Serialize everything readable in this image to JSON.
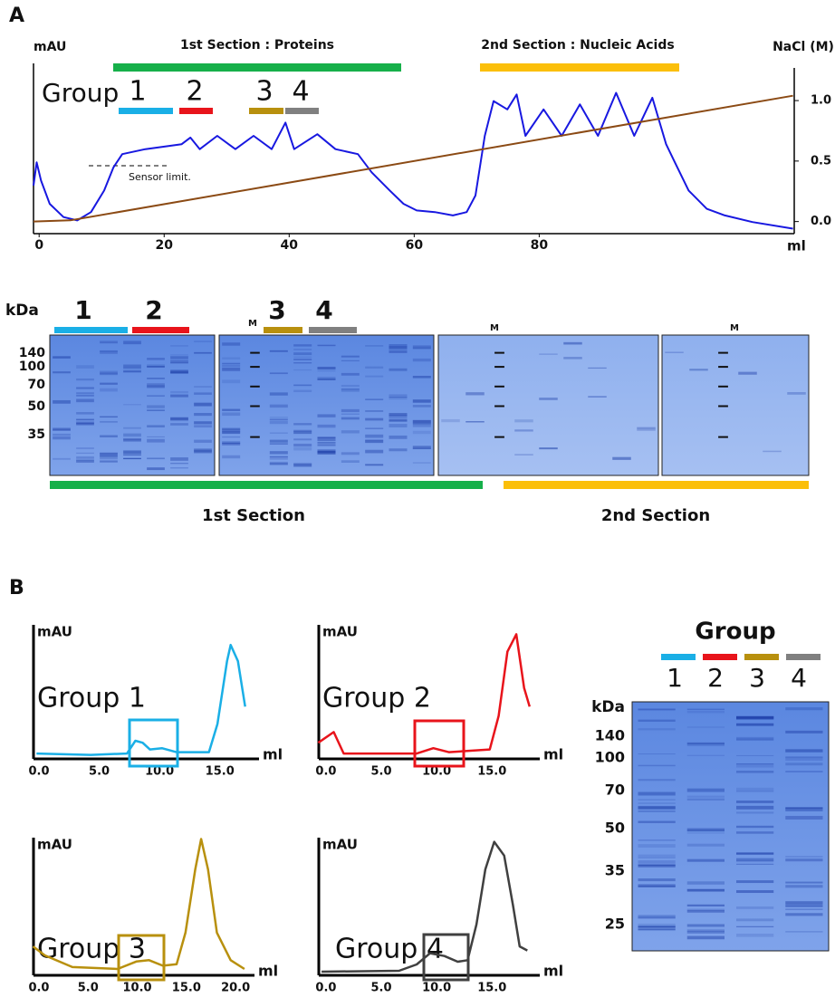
{
  "panel_a": {
    "label": "A",
    "group_label": "Group",
    "groups": [
      "1",
      "2",
      "3",
      "4"
    ],
    "sections": [
      "1st Section : Proteins",
      "2nd Section : Nucleic Acids"
    ],
    "sensor_note": "Sensor limit.",
    "gel": {
      "kda_unit": "kDa",
      "kda": [
        "140",
        "100",
        "70",
        "50",
        "35"
      ],
      "groups": [
        "1",
        "2",
        "3",
        "4"
      ],
      "marker": "M",
      "sections": [
        "1st Section",
        "2nd Section"
      ]
    }
  },
  "panel_b": {
    "label": "B",
    "gel": {
      "title": "Group",
      "lanes": [
        "1",
        "2",
        "3",
        "4"
      ],
      "kda_unit": "kDa",
      "kda": [
        "140",
        "100",
        "70",
        "50",
        "35",
        "25"
      ]
    }
  },
  "chart_data": [
    {
      "type": "line",
      "y_label": "mAU",
      "y2_label": "NaCl (M)",
      "x_label": "ml",
      "xlim": [
        -0.9,
        120.8
      ],
      "xticks": [
        0,
        20,
        40,
        60,
        80
      ],
      "ylim": [
        0,
        100
      ],
      "y2lim": [
        -0.1,
        1.27
      ],
      "y2ticks": [
        {
          "value": 0,
          "label": "0.0"
        },
        {
          "value": 0.5,
          "label": "0.5"
        },
        {
          "value": 1,
          "label": "1.0"
        }
      ],
      "series": [
        {
          "color": "#1818e0",
          "x": [
            -0.9,
            -0.4,
            0.3,
            1.7,
            3.9,
            6.1,
            8.3,
            10.4,
            11.9,
            13.3,
            17.0,
            22.8,
            24.2,
            25.7,
            28.5,
            31.4,
            34.3,
            37.2,
            39.4,
            40.8,
            44.5,
            47.4,
            51.0,
            53.2,
            56.1,
            58.3,
            60.4,
            63.3,
            66.2,
            68.4,
            69.8,
            71.3,
            72.7,
            74.9,
            76.4,
            77.8,
            80.7,
            83.6,
            86.5,
            89.4,
            92.3,
            95.2,
            98.1,
            100.3,
            101.7,
            103.9,
            106.8,
            109.7,
            114.1,
            120.6
          ],
          "values": [
            29,
            43,
            32,
            18,
            10,
            8,
            13,
            26,
            40,
            48,
            51,
            54,
            58,
            51,
            59,
            51,
            59,
            51,
            67,
            51,
            60,
            51,
            48,
            37,
            26,
            18,
            14,
            13,
            11,
            13,
            23,
            59,
            80,
            75,
            84,
            59,
            75,
            59,
            78,
            59,
            85,
            59,
            82,
            54,
            43,
            26,
            15,
            11,
            7,
            3
          ]
        },
        {
          "color": "#8b4a14",
          "axis": "y2",
          "x": [
            -0.9,
            5,
            120.6
          ],
          "values": [
            0,
            0.01,
            1.04
          ]
        }
      ]
    },
    {
      "type": "line",
      "title": "Group 1",
      "y_label": "mAU",
      "x_label": "ml",
      "xlim": [
        -0.45,
        17.5
      ],
      "ylim": [
        0,
        100
      ],
      "xticks": [
        {
          "value": 0,
          "label": "0.0"
        },
        {
          "value": 5,
          "label": "5.0"
        },
        {
          "value": 10,
          "label": "10.0"
        },
        {
          "value": 15,
          "label": "15.0"
        }
      ],
      "x": [
        -0.2,
        4.3,
        7.3,
        8.0,
        8.6,
        9.2,
        10.2,
        11.4,
        14.1,
        14.8,
        15.6,
        15.9,
        16.5,
        17.1
      ],
      "series": [
        {
          "color": "#1aafe6",
          "values": [
            4,
            3,
            4,
            13.5,
            12,
            7,
            8,
            5,
            5,
            26,
            73,
            85,
            73,
            39
          ]
        }
      ]
    },
    {
      "type": "line",
      "title": "Group 2",
      "y_label": "mAU",
      "x_label": "ml",
      "xlim": [
        -0.65,
        18.5
      ],
      "ylim": [
        0,
        100
      ],
      "xticks": [
        {
          "value": 0,
          "label": "0.0"
        },
        {
          "value": 5,
          "label": "5.0"
        },
        {
          "value": 10,
          "label": "10.0"
        },
        {
          "value": 15,
          "label": "15.0"
        }
      ],
      "x": [
        -0.7,
        0.7,
        1.6,
        8.2,
        9.7,
        11.1,
        14.8,
        15.6,
        16.4,
        17.2,
        17.9,
        18.4
      ],
      "series": [
        {
          "color": "#e8141b",
          "values": [
            12,
            20,
            4,
            4,
            8,
            5,
            7,
            32,
            80,
            93,
            53,
            39
          ]
        }
      ]
    },
    {
      "type": "line",
      "title": "Group 3",
      "y_label": "mAU",
      "x_label": "ml",
      "xlim": [
        -0.55,
        21
      ],
      "ylim": [
        0,
        100
      ],
      "xticks": [
        {
          "value": 0,
          "label": "0.0"
        },
        {
          "value": 5,
          "label": "5.0"
        },
        {
          "value": 10,
          "label": "10.0"
        },
        {
          "value": 15,
          "label": "15.0"
        },
        {
          "value": 20,
          "label": "20.0"
        }
      ],
      "x": [
        -0.6,
        0.6,
        3.4,
        8.0,
        9.9,
        11.2,
        12.6,
        14.0,
        14.9,
        15.9,
        16.5,
        17.2,
        18.1,
        19.5,
        20.9
      ],
      "series": [
        {
          "color": "#b8900e",
          "values": [
            21,
            14.5,
            6,
            4.6,
            10,
            11,
            7,
            8,
            31,
            77,
            99,
            77,
            31,
            11,
            4.6
          ]
        }
      ]
    },
    {
      "type": "line",
      "title": "Group 4",
      "y_label": "mAU",
      "x_label": "ml",
      "xlim": [
        -0.65,
        18.5
      ],
      "ylim": [
        0,
        100
      ],
      "xticks": [
        {
          "value": 0,
          "label": "0.0"
        },
        {
          "value": 5,
          "label": "5.0"
        },
        {
          "value": 10,
          "label": "10.0"
        },
        {
          "value": 15,
          "label": "15.0"
        }
      ],
      "x": [
        -0.4,
        6.6,
        8.2,
        9.4,
        10.7,
        11.9,
        12.8,
        13.6,
        14.4,
        15.2,
        16.1,
        16.9,
        17.5,
        18.2
      ],
      "series": [
        {
          "color": "#404040",
          "values": [
            2.6,
            3.3,
            7.9,
            16,
            14,
            9.9,
            11,
            37,
            77,
            97,
            87,
            51,
            21,
            18
          ]
        }
      ]
    }
  ]
}
